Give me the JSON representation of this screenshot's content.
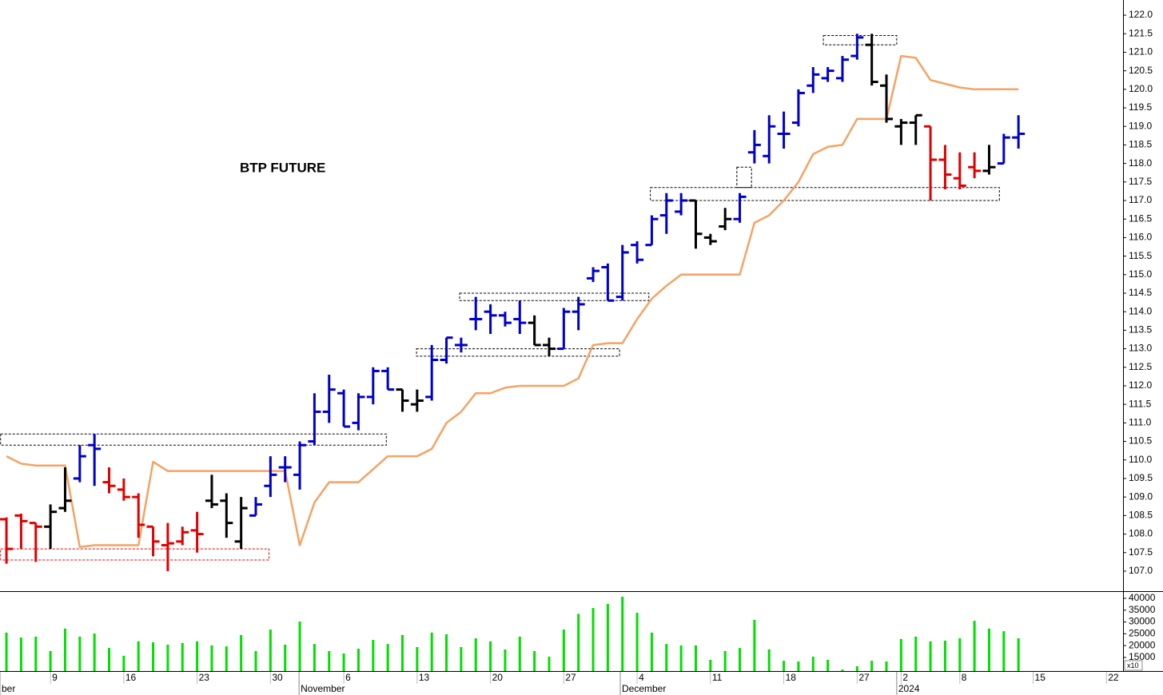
{
  "chart_data": [
    {
      "type": "ohlc",
      "title": "BTP FUTURE",
      "x": [
        0,
        1,
        2,
        3,
        4,
        5,
        6,
        7,
        8,
        9,
        10,
        11,
        12,
        13,
        14,
        15,
        16,
        17,
        18,
        19,
        20,
        21,
        22,
        23,
        24,
        25,
        26,
        27,
        28,
        29,
        30,
        31,
        32,
        33,
        34,
        35,
        36,
        37,
        38,
        39,
        40,
        41,
        42,
        43,
        44,
        45,
        46,
        47,
        48,
        49,
        50,
        51,
        52,
        53,
        54,
        55,
        56,
        57,
        58,
        59,
        60,
        61,
        62,
        63,
        64,
        65,
        66,
        67,
        68,
        69
      ],
      "open": [
        108.4,
        108.5,
        108.3,
        108.2,
        108.7,
        109.5,
        110.4,
        109.4,
        109.2,
        109.0,
        108.2,
        107.7,
        107.8,
        108.1,
        108.9,
        108.9,
        107.8,
        108.5,
        109.3,
        109.8,
        109.6,
        110.5,
        111.3,
        111.8,
        111.0,
        111.7,
        112.4,
        111.9,
        111.5,
        111.7,
        112.7,
        113.1,
        113.8,
        114.0,
        113.9,
        113.8,
        113.7,
        113.1,
        113.0,
        114.0,
        114.9,
        115.2,
        114.4,
        115.8,
        115.8,
        116.6,
        116.7,
        117.0,
        116.0,
        116.3,
        116.5,
        118.3,
        118.2,
        118.8,
        119.1,
        120.1,
        120.3,
        120.3,
        120.9,
        121.2,
        120.1,
        119.0,
        119.1,
        119.0,
        118.1,
        117.6,
        117.9,
        117.8,
        118.0,
        118.7
      ],
      "high": [
        108.45,
        108.55,
        108.3,
        108.8,
        109.8,
        110.4,
        110.7,
        109.8,
        109.5,
        109.1,
        108.2,
        108.3,
        108.2,
        108.6,
        109.6,
        109.1,
        109.0,
        109.0,
        110.1,
        110.1,
        110.5,
        111.8,
        112.3,
        111.9,
        111.8,
        112.5,
        112.5,
        111.9,
        111.9,
        113.1,
        113.3,
        113.3,
        114.4,
        114.2,
        114.0,
        114.3,
        113.9,
        113.3,
        114.1,
        114.4,
        115.2,
        115.3,
        115.8,
        115.9,
        116.6,
        117.2,
        117.2,
        117.0,
        116.1,
        116.8,
        117.2,
        118.9,
        119.3,
        119.4,
        120.0,
        120.6,
        120.6,
        120.9,
        121.5,
        121.5,
        120.4,
        119.2,
        119.3,
        119.0,
        118.5,
        118.3,
        118.3,
        118.5,
        118.8,
        119.3
      ],
      "low": [
        107.2,
        107.6,
        107.25,
        107.6,
        108.6,
        109.4,
        109.3,
        109.1,
        108.9,
        107.9,
        107.4,
        107.0,
        107.7,
        107.5,
        108.7,
        107.9,
        107.6,
        108.5,
        109.0,
        109.4,
        109.2,
        110.4,
        111.0,
        110.9,
        110.8,
        111.5,
        111.9,
        111.3,
        111.3,
        111.6,
        112.6,
        112.9,
        113.5,
        113.4,
        113.6,
        113.4,
        113.1,
        112.8,
        113.0,
        113.5,
        114.8,
        114.3,
        114.3,
        115.3,
        115.8,
        116.1,
        116.6,
        115.7,
        115.8,
        116.2,
        116.4,
        118.0,
        118.0,
        118.4,
        119.0,
        119.9,
        120.2,
        120.2,
        120.8,
        120.1,
        119.1,
        118.5,
        118.5,
        117.0,
        117.3,
        117.3,
        117.6,
        117.7,
        118.0,
        118.4
      ],
      "close": [
        107.6,
        108.35,
        108.2,
        108.6,
        108.9,
        110.1,
        110.3,
        109.3,
        109.0,
        108.25,
        107.8,
        107.75,
        108.05,
        108.0,
        108.8,
        108.3,
        108.7,
        108.8,
        109.6,
        109.8,
        110.4,
        111.3,
        111.9,
        110.9,
        111.7,
        112.4,
        111.9,
        111.6,
        111.6,
        112.7,
        113.3,
        113.1,
        113.8,
        113.9,
        113.7,
        113.7,
        113.1,
        113.0,
        114.0,
        114.2,
        115.1,
        114.3,
        115.6,
        115.4,
        116.5,
        117.0,
        117.0,
        116.1,
        115.9,
        116.5,
        117.1,
        118.5,
        119.0,
        118.8,
        119.9,
        120.4,
        120.5,
        120.8,
        121.4,
        120.2,
        119.2,
        119.1,
        119.3,
        118.1,
        117.7,
        117.4,
        117.8,
        117.9,
        118.7,
        118.8
      ],
      "bar_colors": [
        "#e00000",
        "#e00000",
        "#e00000",
        "#000000",
        "#000000",
        "#0000cc",
        "#0000cc",
        "#e00000",
        "#e00000",
        "#e00000",
        "#e00000",
        "#e00000",
        "#e00000",
        "#e00000",
        "#000000",
        "#000000",
        "#000000",
        "#0000cc",
        "#0000cc",
        "#0000cc",
        "#0000cc",
        "#0000cc",
        "#0000cc",
        "#0000cc",
        "#0000cc",
        "#0000cc",
        "#0000cc",
        "#000000",
        "#000000",
        "#0000cc",
        "#0000cc",
        "#0000cc",
        "#0000cc",
        "#0000cc",
        "#0000cc",
        "#0000cc",
        "#000000",
        "#000000",
        "#0000cc",
        "#0000cc",
        "#0000cc",
        "#0000cc",
        "#0000cc",
        "#0000cc",
        "#0000cc",
        "#0000cc",
        "#0000cc",
        "#000000",
        "#000000",
        "#000000",
        "#0000cc",
        "#0000cc",
        "#0000cc",
        "#0000cc",
        "#0000cc",
        "#0000cc",
        "#0000cc",
        "#0000cc",
        "#0000cc",
        "#000000",
        "#000000",
        "#000000",
        "#000000",
        "#e00000",
        "#e00000",
        "#e00000",
        "#e00000",
        "#000000",
        "#0000cc",
        "#0000cc"
      ],
      "line": {
        "color": "#f5a262",
        "values": [
          110.1,
          109.9,
          109.85,
          109.85,
          109.85,
          107.65,
          107.7,
          107.7,
          107.7,
          107.7,
          109.95,
          109.7,
          109.7,
          109.7,
          109.7,
          109.7,
          109.7,
          109.7,
          109.7,
          109.7,
          107.7,
          108.85,
          109.4,
          109.4,
          109.4,
          109.75,
          110.1,
          110.1,
          110.1,
          110.3,
          111.0,
          111.3,
          111.8,
          111.8,
          111.95,
          112.0,
          112.0,
          112.0,
          112.0,
          112.2,
          113.1,
          113.15,
          113.15,
          113.8,
          114.35,
          114.7,
          115.0,
          115.0,
          115.0,
          115.0,
          115.0,
          116.4,
          116.6,
          117.0,
          117.5,
          118.25,
          118.45,
          118.5,
          119.2,
          119.2,
          119.2,
          120.9,
          120.85,
          120.25,
          120.15,
          120.05,
          120.0,
          120.0,
          120.0,
          120.0
        ]
      },
      "zones": [
        {
          "x": [
            -0.4,
            25.9
          ],
          "y": [
            110.4,
            110.7
          ],
          "color": "#000000"
        },
        {
          "x": [
            -0.4,
            17.9
          ],
          "y": [
            107.3,
            107.6
          ],
          "color": "#e00000"
        },
        {
          "x": [
            27.96,
            41.8
          ],
          "y": [
            112.8,
            113.0
          ],
          "color": "#000000"
        },
        {
          "x": [
            30.9,
            43.8
          ],
          "y": [
            114.3,
            114.5
          ],
          "color": "#000000"
        },
        {
          "x": [
            43.9,
            67.7
          ],
          "y": [
            117.0,
            117.35
          ],
          "color": "#000000"
        },
        {
          "x": [
            49.8,
            50.8
          ],
          "y": [
            117.35,
            117.9
          ],
          "color": "#000000"
        },
        {
          "x": [
            55.7,
            60.7
          ],
          "y": [
            121.2,
            121.45
          ],
          "color": "#000000"
        }
      ],
      "xlim": [
        -0.44,
        76.13
      ],
      "ylim": [
        106.46,
        122.41
      ],
      "yticks": [
        {
          "value": 107,
          "label": "107.0"
        },
        {
          "value": 107.5,
          "label": "107.5"
        },
        {
          "value": 108,
          "label": "108.0"
        },
        {
          "value": 108.5,
          "label": "108.5"
        },
        {
          "value": 109,
          "label": "109.0"
        },
        {
          "value": 109.5,
          "label": "109.5"
        },
        {
          "value": 110,
          "label": "110.0"
        },
        {
          "value": 110.5,
          "label": "110.5"
        },
        {
          "value": 111,
          "label": "111.0"
        },
        {
          "value": 111.5,
          "label": "111.5"
        },
        {
          "value": 112,
          "label": "112.0"
        },
        {
          "value": 112.5,
          "label": "112.5"
        },
        {
          "value": 113,
          "label": "113.0"
        },
        {
          "value": 113.5,
          "label": "113.5"
        },
        {
          "value": 114,
          "label": "114.0"
        },
        {
          "value": 114.5,
          "label": "114.5"
        },
        {
          "value": 115,
          "label": "115.0"
        },
        {
          "value": 115.5,
          "label": "115.5"
        },
        {
          "value": 116,
          "label": "116.0"
        },
        {
          "value": 116.5,
          "label": "116.5"
        },
        {
          "value": 117,
          "label": "117.0"
        },
        {
          "value": 117.5,
          "label": "117.5"
        },
        {
          "value": 118,
          "label": "118.0"
        },
        {
          "value": 118.5,
          "label": "118.5"
        },
        {
          "value": 119,
          "label": "119.0"
        },
        {
          "value": 119.5,
          "label": "119.5"
        },
        {
          "value": 120,
          "label": "120.0"
        },
        {
          "value": 120.5,
          "label": "120.5"
        },
        {
          "value": 121,
          "label": "121.0"
        },
        {
          "value": 121.5,
          "label": "121.5"
        },
        {
          "value": 122,
          "label": "122.0"
        }
      ]
    },
    {
      "type": "bar",
      "color": "#00e000",
      "multiplier": "x10",
      "x": [
        0,
        1,
        2,
        3,
        4,
        5,
        6,
        7,
        8,
        9,
        10,
        11,
        12,
        13,
        14,
        15,
        16,
        17,
        18,
        19,
        20,
        21,
        22,
        23,
        24,
        25,
        26,
        27,
        28,
        29,
        30,
        31,
        32,
        33,
        34,
        35,
        36,
        37,
        38,
        39,
        40,
        41,
        42,
        43,
        44,
        45,
        46,
        47,
        48,
        49,
        50,
        51,
        52,
        53,
        54,
        55,
        56,
        57,
        58,
        59,
        60,
        61,
        62,
        63,
        64,
        65,
        66,
        67,
        68,
        69
      ],
      "values": [
        25500,
        23400,
        23800,
        17700,
        27200,
        23800,
        25100,
        19000,
        15700,
        21800,
        21400,
        20400,
        21100,
        21800,
        20100,
        19700,
        24500,
        17700,
        26800,
        20400,
        30200,
        20700,
        17700,
        16700,
        18700,
        22400,
        20700,
        24500,
        19400,
        25500,
        24800,
        19400,
        23100,
        21800,
        18400,
        23800,
        17700,
        15300,
        26800,
        33400,
        35900,
        37600,
        40700,
        33900,
        25500,
        20700,
        20100,
        20100,
        14000,
        17700,
        19000,
        30900,
        18400,
        13600,
        13300,
        15300,
        14000,
        9900,
        11300,
        13600,
        13300,
        22800,
        23800,
        21800,
        22100,
        23100,
        30500,
        27200,
        26100,
        23100
      ],
      "xlim": [
        -0.44,
        76.13
      ],
      "ylim": [
        9250,
        42350
      ],
      "yticks": [
        15000,
        20000,
        25000,
        30000,
        35000,
        40000
      ],
      "xticks": [
        {
          "value": 3,
          "label": "9"
        },
        {
          "value": 8,
          "label": "16"
        },
        {
          "value": 13,
          "label": "23"
        },
        {
          "value": 18,
          "label": "30"
        },
        {
          "value": 23,
          "label": "6"
        },
        {
          "value": 28,
          "label": "13"
        },
        {
          "value": 33,
          "label": "20"
        },
        {
          "value": 38,
          "label": "27"
        },
        {
          "value": 43,
          "label": "4"
        },
        {
          "value": 48,
          "label": "11"
        },
        {
          "value": 53,
          "label": "18"
        },
        {
          "value": 58,
          "label": "27"
        },
        {
          "value": 61,
          "label": "2"
        },
        {
          "value": 65,
          "label": "8"
        },
        {
          "value": 70,
          "label": "15"
        },
        {
          "value": 75,
          "label": "22"
        }
      ],
      "month_ticks": [
        {
          "value": -0.44,
          "label": "ber"
        },
        {
          "value": 19.95,
          "label": "November"
        },
        {
          "value": 41.85,
          "label": "December"
        },
        {
          "value": 60.7,
          "label": "2024"
        }
      ]
    }
  ]
}
